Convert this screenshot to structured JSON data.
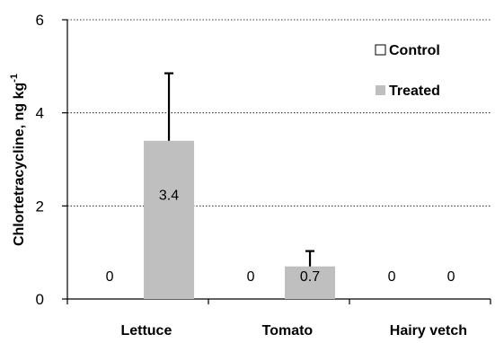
{
  "chart_data": {
    "type": "bar",
    "categories": [
      "Lettuce",
      "Tomato",
      "Hairy vetch"
    ],
    "series": [
      {
        "name": "Control",
        "values": [
          0,
          0,
          0
        ],
        "data_labels": [
          "0",
          "0",
          "0"
        ],
        "color": "#ffffff"
      },
      {
        "name": "Treated",
        "values": [
          3.4,
          0.7,
          0
        ],
        "errors": [
          1.45,
          0.33,
          0
        ],
        "data_labels": [
          "3.4",
          "0.7",
          "0"
        ],
        "color": "#bfbfbf"
      }
    ],
    "ylabel_main": "Chlortetracycline, ng kg",
    "ylabel_sup": "-1",
    "yticks": [
      "0",
      "2",
      "4",
      "6"
    ],
    "ylim": [
      0,
      6
    ],
    "grid": "dotted horizontal",
    "legend_position": "top-right"
  }
}
